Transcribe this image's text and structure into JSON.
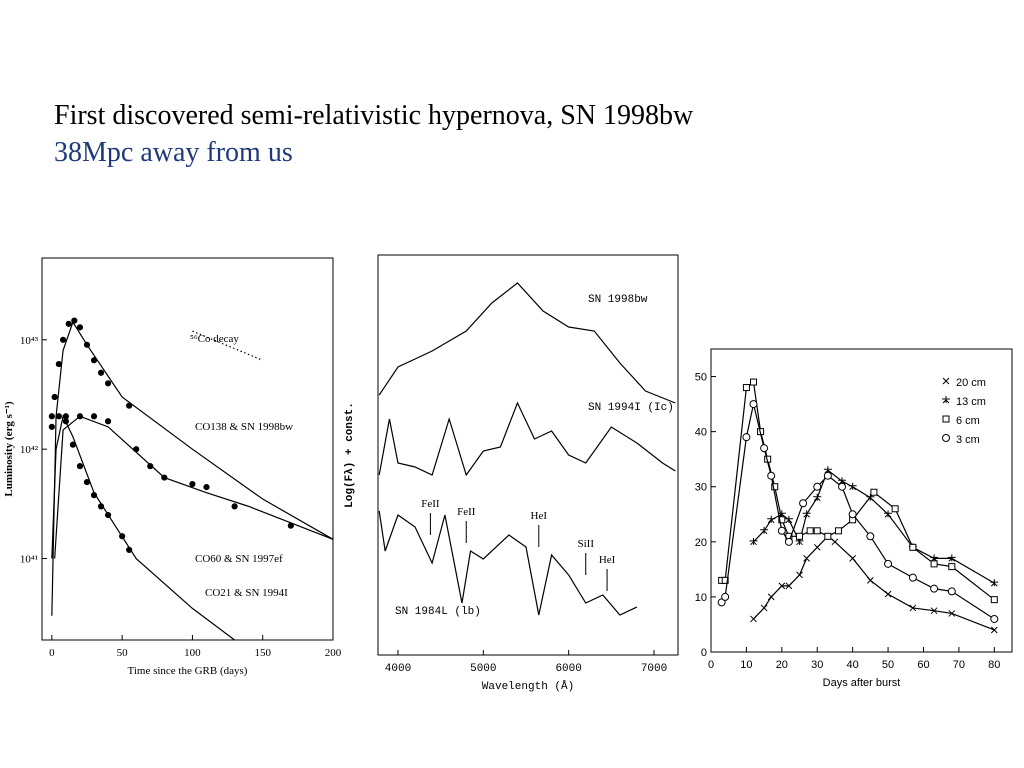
{
  "title": "First discovered semi-relativistic hypernova, SN 1998bw",
  "subtitle": "38Mpc away from us",
  "chart_data": [
    {
      "type": "line",
      "log_y": true,
      "x_label": "Time since the GRB (days)",
      "y_label": "Luminosity (erg s⁻¹)",
      "xlim": [
        -7,
        200
      ],
      "xticks": [
        0,
        50,
        100,
        150,
        200
      ],
      "ylim": [
        1.8e+40,
        5.6e+43
      ],
      "yticks": [
        {
          "value": 1e+41,
          "label": "10⁴¹"
        },
        {
          "value": 1e+42,
          "label": "10⁴²"
        },
        {
          "value": 1e+43,
          "label": "10⁴³"
        }
      ],
      "annotations": [
        "⁵⁶Co decay",
        "CO138 & SN 1998bw",
        "CO60 & SN 1997ef",
        "CO21 & SN 1994I"
      ],
      "series": [
        {
          "style": "points",
          "color": "#000",
          "x": [
            2,
            5,
            8,
            12,
            16,
            20,
            25,
            30,
            35,
            40,
            55
          ],
          "values": [
            3e+42,
            6e+42,
            1e+43,
            1.4e+43,
            1.5e+43,
            1.3e+43,
            9e+42,
            6.5e+42,
            5e+42,
            4e+42,
            2.5e+42
          ]
        },
        {
          "style": "line",
          "color": "#000",
          "x": [
            0,
            3,
            8,
            15,
            25,
            50,
            100,
            150,
            200
          ],
          "values": [
            3e+40,
            2e+42,
            8e+42,
            1.45e+43,
            9e+42,
            3e+42,
            1e+42,
            3.5e+41,
            1.5e+41
          ]
        },
        {
          "style": "points",
          "color": "#000",
          "x": [
            0,
            10,
            20,
            30,
            40,
            60,
            70,
            80,
            100,
            110,
            130,
            170
          ],
          "values": [
            2e+42,
            2e+42,
            2e+42,
            2e+42,
            1.8e+42,
            1e+42,
            7e+41,
            5.5e+41,
            4.8e+41,
            4.5e+41,
            3e+41,
            2e+41
          ]
        },
        {
          "style": "line",
          "color": "#000",
          "x": [
            2,
            8,
            20,
            40,
            80,
            110,
            140,
            200
          ],
          "values": [
            1e+41,
            1.5e+42,
            2e+42,
            1.6e+42,
            5.5e+41,
            4e+41,
            3e+41,
            1.5e+41
          ]
        },
        {
          "style": "points",
          "color": "#000",
          "x": [
            0,
            5,
            10,
            15,
            20,
            25,
            30,
            35,
            40,
            50,
            55
          ],
          "values": [
            1.6e+42,
            2e+42,
            1.8e+42,
            1.1e+42,
            7e+41,
            5e+41,
            3.8e+41,
            3e+41,
            2.5e+41,
            1.6e+41,
            1.2e+41
          ]
        },
        {
          "style": "line",
          "color": "#000",
          "x": [
            0,
            3,
            8,
            15,
            30,
            60,
            100,
            130
          ],
          "values": [
            1e+41,
            1e+42,
            2e+42,
            1.3e+42,
            4e+41,
            1e+41,
            3.5e+40,
            1.8e+40
          ]
        },
        {
          "style": "dotted",
          "color": "#000",
          "x": [
            100,
            150
          ],
          "values": [
            1.2e+43,
            6.5e+42
          ]
        }
      ]
    },
    {
      "type": "line",
      "x_label": "Wavelength (Å)",
      "y_label": "Log(Fλ) + const.",
      "xlim": [
        3766,
        7281
      ],
      "xticks": [
        4000,
        5000,
        6000,
        7000
      ],
      "ylim": [
        0,
        10
      ],
      "annotations": [
        "SN 1998bw",
        "SN 1994I (Ic)",
        "SN 1984L (lb)"
      ],
      "lines": [
        {
          "label": "FeII",
          "x": 4380,
          "y": 3.0
        },
        {
          "label": "FeII",
          "x": 4800,
          "y": 2.8
        },
        {
          "label": "HeI",
          "x": 5650,
          "y": 2.7
        },
        {
          "label": "SiII",
          "x": 6200,
          "y": 2.0
        },
        {
          "label": "HeI",
          "x": 6450,
          "y": 1.6
        }
      ],
      "series": [
        {
          "style": "line",
          "color": "#000",
          "x": [
            3780,
            4000,
            4400,
            4800,
            5100,
            5400,
            5700,
            6000,
            6300,
            6600,
            6900,
            7250
          ],
          "values": [
            6.5,
            7.2,
            7.6,
            8.1,
            8.8,
            9.3,
            8.6,
            8.2,
            8.1,
            7.3,
            6.6,
            6.3
          ]
        },
        {
          "style": "line",
          "color": "#000",
          "x": [
            3780,
            3900,
            4000,
            4200,
            4400,
            4600,
            4800,
            5000,
            5200,
            5400,
            5600,
            5800,
            6000,
            6200,
            6500,
            6800,
            7100,
            7250
          ],
          "values": [
            4.5,
            5.9,
            4.8,
            4.7,
            4.5,
            5.9,
            4.5,
            5.1,
            5.2,
            6.3,
            5.4,
            5.6,
            5.0,
            4.8,
            5.7,
            5.3,
            4.8,
            4.6
          ]
        },
        {
          "style": "line",
          "color": "#000",
          "x": [
            3780,
            3850,
            4000,
            4200,
            4400,
            4550,
            4750,
            4850,
            5000,
            5300,
            5500,
            5650,
            5800,
            6000,
            6200,
            6400,
            6600,
            6800
          ],
          "values": [
            3.6,
            2.6,
            3.5,
            3.2,
            2.3,
            3.5,
            1.3,
            2.6,
            2.4,
            3.0,
            2.7,
            1.0,
            2.5,
            2.0,
            1.3,
            1.5,
            1.0,
            1.2
          ]
        }
      ]
    },
    {
      "type": "line",
      "x_label": "Days after burst",
      "xlim": [
        0,
        85
      ],
      "xticks": [
        0,
        10,
        20,
        30,
        40,
        50,
        60,
        70,
        80
      ],
      "ylim": [
        0,
        55
      ],
      "yticks": [
        0,
        10,
        20,
        30,
        40,
        50
      ],
      "series": [
        {
          "name": "20 cm",
          "marker": "x",
          "color": "#000",
          "x": [
            12,
            15,
            17,
            20,
            22,
            25,
            27,
            30,
            33,
            35,
            40,
            45,
            50,
            57,
            63,
            68,
            80
          ],
          "values": [
            6,
            8,
            10,
            12,
            12,
            14,
            17,
            19,
            21,
            20,
            17,
            13,
            10.5,
            8,
            7.5,
            7,
            4
          ]
        },
        {
          "name": "13 cm",
          "marker": "star",
          "color": "#000",
          "x": [
            12,
            15,
            17,
            20,
            22,
            25,
            27,
            30,
            33,
            37,
            40,
            45,
            50,
            57,
            63,
            68,
            80
          ],
          "values": [
            20,
            22,
            24,
            25,
            24,
            20,
            25,
            28,
            33,
            31,
            30,
            28,
            25,
            19,
            17,
            17,
            12.5
          ]
        },
        {
          "name": "6 cm",
          "marker": "square",
          "color": "#000",
          "x": [
            3,
            4,
            10,
            12,
            14,
            16,
            18,
            20,
            22,
            25,
            28,
            30,
            33,
            36,
            40,
            46,
            52,
            57,
            63,
            68,
            80
          ],
          "values": [
            13,
            13,
            48,
            49,
            40,
            35,
            30,
            24,
            21,
            21,
            22,
            22,
            21,
            22,
            24,
            29,
            26,
            19,
            16,
            15.5,
            9.5
          ]
        },
        {
          "name": "3 cm",
          "marker": "circle",
          "color": "#000",
          "x": [
            3,
            4,
            10,
            12,
            15,
            17,
            20,
            22,
            26,
            30,
            33,
            37,
            40,
            45,
            50,
            57,
            63,
            68,
            80
          ],
          "values": [
            9,
            10,
            39,
            45,
            37,
            32,
            22,
            20,
            27,
            30,
            32,
            30,
            25,
            21,
            16,
            13.5,
            11.5,
            11,
            6
          ]
        }
      ]
    }
  ]
}
